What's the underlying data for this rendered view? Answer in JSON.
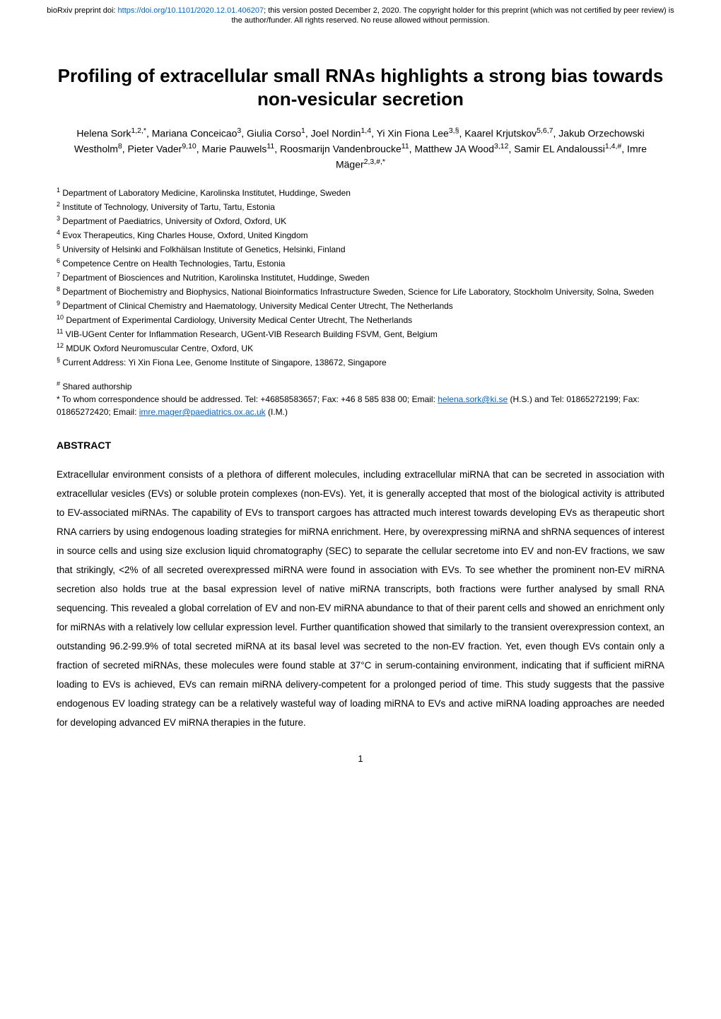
{
  "preprint_header": {
    "prefix": "bioRxiv preprint doi: ",
    "doi_link": "https://doi.org/10.1101/2020.12.01.406207",
    "suffix": "; this version posted December 2, 2020. The copyright holder for this preprint (which was not certified by peer review) is the author/funder. All rights reserved. No reuse allowed without permission."
  },
  "title": "Profiling of extracellular small RNAs highlights a strong bias towards non-vesicular secretion",
  "authors_html": "Helena Sork<sup>1,2,*</sup>, Mariana Conceicao<sup>3</sup>, Giulia Corso<sup>1</sup>, Joel Nordin<sup>1,4</sup>, Yi Xin Fiona Lee<sup>3,§</sup>, Kaarel Krjutskov<sup>5,6,7</sup>, Jakub Orzechowski Westholm<sup>8</sup>, Pieter Vader<sup>9,10</sup>, Marie Pauwels<sup>11</sup>, Roosmarijn Vandenbroucke<sup>11</sup>, Matthew JA Wood<sup>3,12</sup>, Samir EL Andaloussi<sup>1,4,#</sup>, Imre Mäger<sup>2,3,#,*</sup>",
  "affiliations": [
    "1 Department of Laboratory Medicine, Karolinska Institutet, Huddinge, Sweden",
    "2 Institute of Technology, University of Tartu, Tartu, Estonia",
    "3 Department of Paediatrics, University of Oxford, Oxford, UK",
    "4 Evox Therapeutics, King Charles House, Oxford, United Kingdom",
    "5 University of Helsinki and Folkhälsan Institute of Genetics, Helsinki, Finland",
    "6 Competence Centre on Health Technologies, Tartu, Estonia",
    "7 Department of Biosciences and Nutrition, Karolinska Institutet, Huddinge, Sweden",
    "8 Department of Biochemistry and Biophysics, National Bioinformatics Infrastructure Sweden, Science for Life Laboratory, Stockholm University, Solna, Sweden",
    "9 Department of Clinical Chemistry and Haematology, University Medical Center Utrecht, The Netherlands",
    "10 Department of Experimental Cardiology, University Medical Center Utrecht, The Netherlands",
    "11 VIB-UGent Center for Inflammation Research, UGent-VIB Research Building FSVM, Gent, Belgium",
    "12 MDUK Oxford Neuromuscular Centre, Oxford, UK",
    "§ Current Address: Yi Xin Fiona Lee, Genome Institute of Singapore, 138672, Singapore"
  ],
  "shared_authorship": "# Shared authorship",
  "correspondence": {
    "line1_prefix": "* To whom correspondence should be addressed. Tel: +46858583657; Fax: +46 8 585 838 00; Email: ",
    "email1": "helena.sork@ki.se",
    "line2_prefix": " (H.S.) and Tel: 01865272199; Fax: 01865272420; Email: ",
    "email2": "imre.mager@paediatrics.ox.ac.uk",
    "line2_suffix": " (I.M.)"
  },
  "abstract_heading": "ABSTRACT",
  "abstract_body": "Extracellular environment consists of a plethora of different molecules, including extracellular miRNA that can be secreted in association with extracellular vesicles (EVs) or soluble protein complexes (non-EVs). Yet, it is generally accepted that most of the biological activity is attributed to EV-associated miRNAs. The capability of EVs to transport cargoes has attracted much interest towards developing EVs as therapeutic short RNA carriers by using endogenous loading strategies for miRNA enrichment. Here, by overexpressing miRNA and shRNA sequences of interest in source cells and using size exclusion liquid chromatography (SEC) to separate the cellular secretome into EV and non-EV fractions, we saw that strikingly, <2% of all secreted overexpressed miRNA were found in association with EVs. To see whether the prominent non-EV miRNA secretion also holds true at the basal expression level of native miRNA transcripts, both fractions were further analysed by small RNA sequencing. This revealed a global correlation of EV and non-EV miRNA abundance to that of their parent cells and showed an enrichment only for miRNAs with a relatively low cellular expression level. Further quantification showed that similarly to the transient overexpression context, an outstanding 96.2-99.9% of total secreted miRNA at its basal level was secreted to the non-EV fraction. Yet, even though EVs contain only a fraction of secreted miRNAs, these molecules were found stable at 37°C in serum-containing environment, indicating that if sufficient miRNA loading to EVs is achieved, EVs can remain miRNA delivery-competent for a prolonged period of time. This study suggests that the passive endogenous EV loading strategy can be a relatively wasteful way of loading miRNA to EVs and active miRNA loading approaches are needed for developing advanced EV miRNA therapies in the future.",
  "page_number": "1",
  "colors": {
    "link": "#0066cc",
    "text": "#000000",
    "background": "#ffffff"
  },
  "typography": {
    "title_fontsize": 26,
    "authors_fontsize": 14,
    "affil_fontsize": 12,
    "abstract_heading_fontsize": 14,
    "abstract_body_fontsize": 13.5,
    "preprint_header_fontsize": 11
  }
}
